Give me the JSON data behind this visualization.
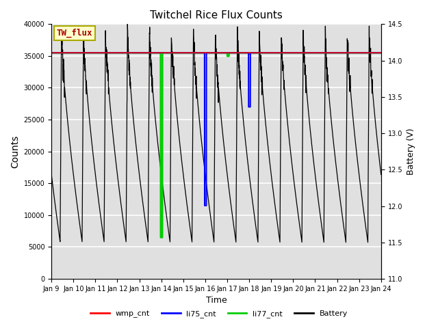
{
  "title": "Twitchel Rice Flux Counts",
  "xlabel": "Time",
  "ylabel_left": "Counts",
  "ylabel_right": "Battery (V)",
  "ylim_left": [
    0,
    40000
  ],
  "ylim_right": [
    11.0,
    14.5
  ],
  "yticks_left": [
    0,
    5000,
    10000,
    15000,
    20000,
    25000,
    30000,
    35000,
    40000
  ],
  "yticks_right": [
    11.0,
    11.5,
    12.0,
    12.5,
    13.0,
    13.5,
    14.0,
    14.5
  ],
  "xtick_labels": [
    "Jan 9",
    "Jan 10",
    "Jan 11",
    "Jan 12",
    "Jan 13",
    "Jan 14",
    "Jan 15",
    "Jan 16",
    "Jan 17",
    "Jan 18",
    "Jan 19",
    "Jan 20",
    "Jan 21",
    "Jan 22",
    "Jan 23",
    "Jan 24"
  ],
  "bg_color": "#e0e0e0",
  "grid_color": "#ffffff",
  "annotation_box_text": "TW_flux",
  "annotation_box_facecolor": "#ffffcc",
  "annotation_box_edgecolor": "#aaaa00",
  "annotation_text_color": "#aa0000",
  "li77_cnt_level": 35500,
  "li77_color": "#00cc00",
  "li75_color": "#0000ff",
  "wmp_color": "#ff0000",
  "battery_color": "#000000",
  "legend_labels": [
    "wmp_cnt",
    "li75_cnt",
    "li77_cnt",
    "Battery"
  ],
  "title_fontsize": 11,
  "figsize": [
    6.4,
    4.8
  ],
  "dpi": 100
}
